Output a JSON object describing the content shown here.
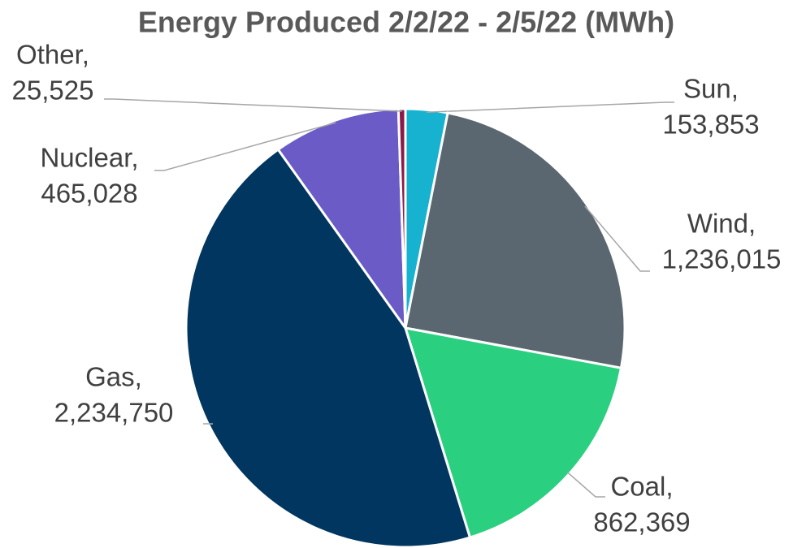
{
  "chart_data": {
    "type": "pie",
    "title": "Energy Produced 2/2/22 - 2/5/22 (MWh)",
    "categories": [
      "Sun,",
      "Wind,",
      "Coal,",
      "Gas,",
      "Nuclear,",
      "Other,"
    ],
    "values": [
      153853,
      1236015,
      862369,
      2234750,
      465028,
      25525
    ],
    "value_labels": [
      "153,853",
      "1,236,015",
      "862,369",
      "2,234,750",
      "465,028",
      "25,525"
    ],
    "colors": [
      "#17b2cf",
      "#5b6770",
      "#2ad07f",
      "#003660",
      "#6a5bc7",
      "#8a1a4a"
    ]
  }
}
